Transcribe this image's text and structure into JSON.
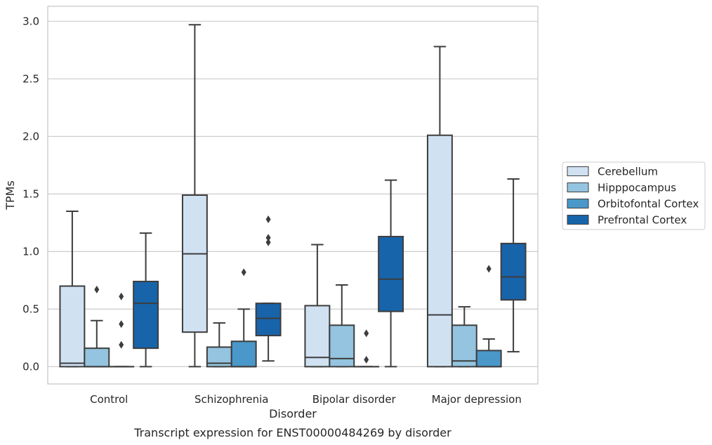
{
  "chart_data": {
    "type": "box",
    "caption": "Transcript expression for ENST00000484269 by disorder",
    "xlabel": "Disorder",
    "ylabel": "TPMs",
    "ylim": [
      -0.15,
      3.13
    ],
    "yticks": [
      0.0,
      0.5,
      1.0,
      1.5,
      2.0,
      2.5,
      3.0
    ],
    "ytick_labels": [
      "0.0",
      "0.5",
      "1.0",
      "1.5",
      "2.0",
      "2.5",
      "3.0"
    ],
    "grid": "horizontal",
    "legend_position": "right",
    "categories": [
      "Control",
      "Schizophrenia",
      "Bipolar disorder",
      "Major depression"
    ],
    "series": [
      {
        "name": "Cerebellum",
        "color": "#d0e1f2",
        "boxes": [
          {
            "whisker_low": 0.0,
            "q1": 0.0,
            "median": 0.03,
            "q3": 0.7,
            "whisker_high": 1.35,
            "outliers": []
          },
          {
            "whisker_low": 0.0,
            "q1": 0.3,
            "median": 0.98,
            "q3": 1.49,
            "whisker_high": 2.97,
            "outliers": []
          },
          {
            "whisker_low": 0.0,
            "q1": 0.0,
            "median": 0.08,
            "q3": 0.53,
            "whisker_high": 1.06,
            "outliers": []
          },
          {
            "whisker_low": 0.0,
            "q1": 0.0,
            "median": 0.45,
            "q3": 2.01,
            "whisker_high": 2.78,
            "outliers": []
          }
        ]
      },
      {
        "name": "Hipppocampus",
        "color": "#94c4df",
        "boxes": [
          {
            "whisker_low": 0.0,
            "q1": 0.0,
            "median": 0.0,
            "q3": 0.16,
            "whisker_high": 0.4,
            "outliers": [
              0.67
            ]
          },
          {
            "whisker_low": 0.0,
            "q1": 0.0,
            "median": 0.03,
            "q3": 0.17,
            "whisker_high": 0.38,
            "outliers": []
          },
          {
            "whisker_low": 0.0,
            "q1": 0.0,
            "median": 0.07,
            "q3": 0.36,
            "whisker_high": 0.71,
            "outliers": []
          },
          {
            "whisker_low": 0.0,
            "q1": 0.0,
            "median": 0.05,
            "q3": 0.36,
            "whisker_high": 0.52,
            "outliers": []
          }
        ]
      },
      {
        "name": "Orbitofontal Cortex",
        "color": "#4a98c9",
        "boxes": [
          {
            "whisker_low": 0.0,
            "q1": 0.0,
            "median": 0.0,
            "q3": 0.0,
            "whisker_high": 0.0,
            "outliers": [
              0.19,
              0.37,
              0.61
            ]
          },
          {
            "whisker_low": 0.0,
            "q1": 0.0,
            "median": 0.0,
            "q3": 0.22,
            "whisker_high": 0.5,
            "outliers": [
              0.82
            ]
          },
          {
            "whisker_low": 0.0,
            "q1": 0.0,
            "median": 0.0,
            "q3": 0.0,
            "whisker_high": 0.0,
            "outliers": [
              0.06,
              0.29
            ]
          },
          {
            "whisker_low": 0.0,
            "q1": 0.0,
            "median": 0.0,
            "q3": 0.14,
            "whisker_high": 0.24,
            "outliers": [
              0.85
            ]
          }
        ]
      },
      {
        "name": "Prefrontal Cortex",
        "color": "#1764ab",
        "boxes": [
          {
            "whisker_low": 0.0,
            "q1": 0.16,
            "median": 0.55,
            "q3": 0.74,
            "whisker_high": 1.16,
            "outliers": []
          },
          {
            "whisker_low": 0.05,
            "q1": 0.27,
            "median": 0.42,
            "q3": 0.55,
            "whisker_high": 0.55,
            "outliers": [
              1.08,
              1.12,
              1.28
            ]
          },
          {
            "whisker_low": 0.0,
            "q1": 0.48,
            "median": 0.76,
            "q3": 1.13,
            "whisker_high": 1.62,
            "outliers": []
          },
          {
            "whisker_low": 0.13,
            "q1": 0.58,
            "median": 0.78,
            "q3": 1.07,
            "whisker_high": 1.63,
            "outliers": []
          }
        ]
      }
    ]
  }
}
